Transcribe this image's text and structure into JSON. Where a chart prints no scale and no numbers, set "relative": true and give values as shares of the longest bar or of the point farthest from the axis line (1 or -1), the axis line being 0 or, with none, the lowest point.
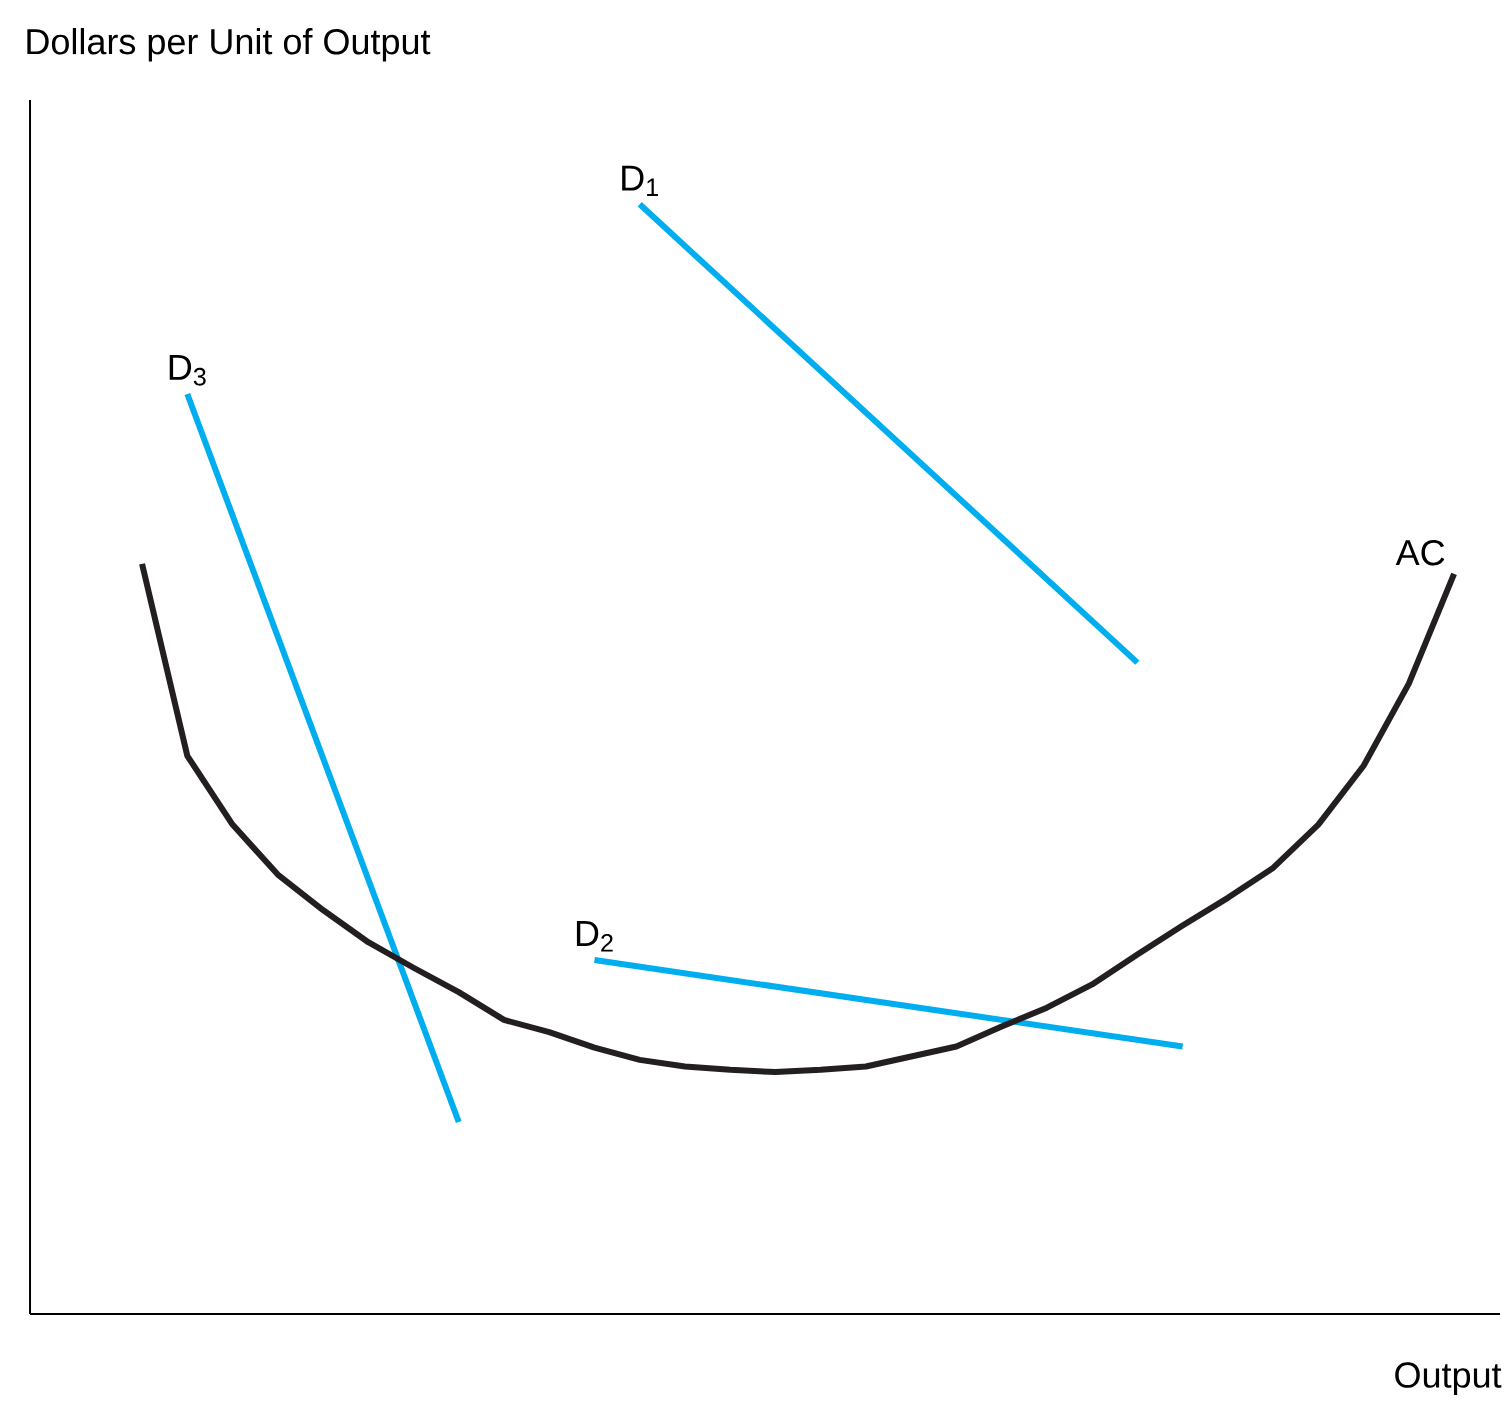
{
  "chart_data": {
    "type": "line",
    "relative": true,
    "ylabel": "Dollars per Unit of Output",
    "xlabel": "Output",
    "marker": "none",
    "line_style": "solid",
    "categories": [
      null,
      null,
      null,
      null,
      null,
      null,
      null,
      null,
      null,
      null,
      null,
      null,
      null,
      null,
      null,
      null,
      null,
      null,
      null,
      null,
      null,
      null,
      null,
      null,
      null,
      null,
      null,
      null,
      null,
      null
    ],
    "series": [
      {
        "name": "D$_{1}$",
        "color": "#00aeef",
        "values": [
          null,
          null,
          null,
          null,
          null,
          null,
          null,
          null,
          null,
          null,
          null,
          1.0,
          null,
          null,
          null,
          null,
          null,
          null,
          null,
          null,
          null,
          null,
          0.587,
          null,
          null,
          null,
          null,
          null,
          null,
          null
        ]
      },
      {
        "name": "D$_{3}$",
        "color": "#00aeef",
        "values": [
          null,
          0.829,
          null,
          null,
          null,
          null,
          null,
          0.173,
          null,
          null,
          null,
          null,
          null,
          null,
          null,
          null,
          null,
          null,
          null,
          null,
          null,
          null,
          null,
          null,
          null,
          null,
          null,
          null,
          null,
          null
        ]
      },
      {
        "name": "D$_{2}$",
        "color": "#00aeef",
        "values": [
          null,
          null,
          null,
          null,
          null,
          null,
          null,
          null,
          null,
          null,
          0.319,
          null,
          null,
          null,
          null,
          null,
          null,
          null,
          null,
          null,
          null,
          null,
          null,
          0.241,
          null,
          null,
          null,
          null,
          null,
          null
        ]
      },
      {
        "name": "AC",
        "color": "#231f20",
        "values": [
          0.676,
          0.503,
          0.441,
          0.396,
          0.364,
          0.335,
          0.312,
          0.29,
          0.265,
          0.254,
          0.24,
          0.229,
          0.223,
          0.22,
          0.218,
          0.22,
          0.223,
          0.232,
          0.241,
          0.259,
          0.276,
          0.297,
          0.324,
          0.35,
          0.375,
          0.402,
          0.441,
          0.494,
          0.568,
          0.667
        ]
      }
    ]
  }
}
